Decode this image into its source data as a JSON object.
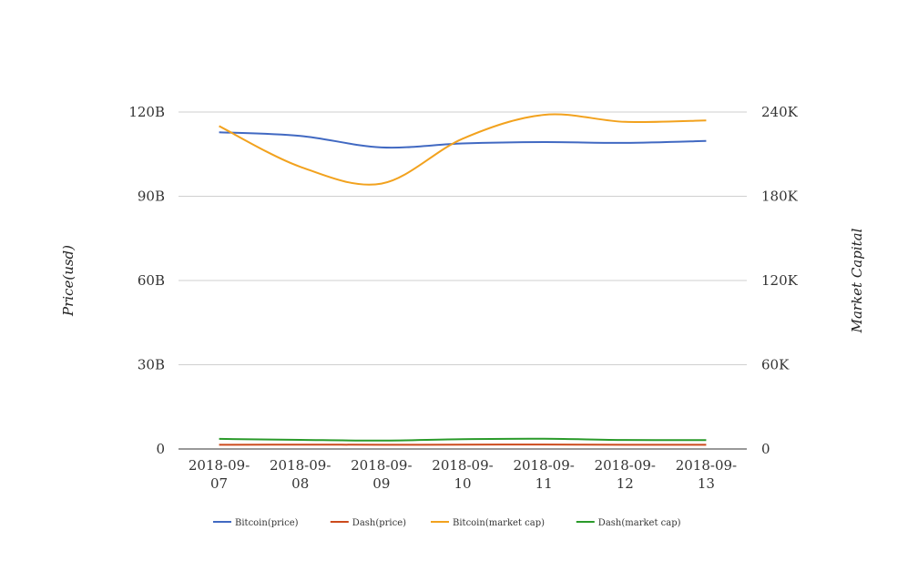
{
  "chart_data": {
    "type": "line",
    "categories": [
      "2018-09-07",
      "2018-09-08",
      "2018-09-09",
      "2018-09-10",
      "2018-09-11",
      "2018-09-12",
      "2018-09-13"
    ],
    "category_lines": [
      [
        "2018-09-",
        "07"
      ],
      [
        "2018-09-",
        "08"
      ],
      [
        "2018-09-",
        "09"
      ],
      [
        "2018-09-",
        "10"
      ],
      [
        "2018-09-",
        "11"
      ],
      [
        "2018-09-",
        "12"
      ],
      [
        "2018-09-",
        "13"
      ]
    ],
    "ylabel_left": "Price(usd)",
    "ylabel_right": "Market Capital",
    "y_left": {
      "min": 0,
      "max": 120000000000,
      "ticks": [
        0,
        30000000000,
        60000000000,
        90000000000,
        120000000000
      ],
      "tick_labels": [
        "0",
        "30B",
        "60B",
        "90B",
        "120B"
      ]
    },
    "y_right": {
      "min": 0,
      "max": 240000,
      "ticks": [
        0,
        60000,
        120000,
        180000,
        240000
      ],
      "tick_labels": [
        "0",
        "60K",
        "120K",
        "180K",
        "240K"
      ]
    },
    "grid": true,
    "legend_position": "bottom",
    "series": [
      {
        "name": "Bitcoin(price)",
        "axis": "left",
        "color": "#4169c2",
        "values": [
          112800000000,
          111500000000,
          107400000000,
          108800000000,
          109300000000,
          109000000000,
          109700000000
        ]
      },
      {
        "name": "Dash(price)",
        "axis": "left",
        "color": "#cc4a1c",
        "values": [
          1500000000,
          1550000000,
          1500000000,
          1550000000,
          1600000000,
          1500000000,
          1500000000
        ]
      },
      {
        "name": "Bitcoin(market cap)",
        "axis": "right",
        "color": "#f2a21e",
        "values": [
          230000,
          201000,
          189000,
          221000,
          238000,
          233000,
          234000
        ]
      },
      {
        "name": "Dash(market cap)",
        "axis": "right",
        "color": "#2a9a2a",
        "values": [
          7200,
          6500,
          6000,
          7000,
          7300,
          6400,
          6300
        ]
      }
    ]
  }
}
